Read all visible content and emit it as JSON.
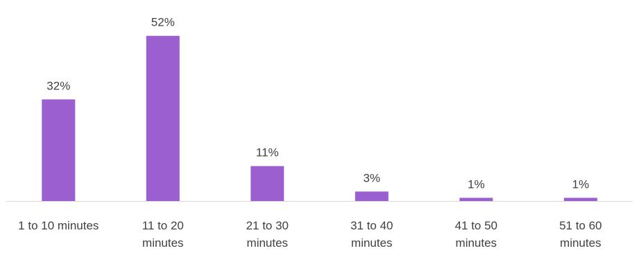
{
  "chart_data": {
    "type": "bar",
    "title": "",
    "xlabel": "",
    "ylabel": "",
    "categories": [
      [
        "1 to 10 minutes"
      ],
      [
        "11 to 20",
        "minutes"
      ],
      [
        "21 to 30",
        "minutes"
      ],
      [
        "31 to 40",
        "minutes"
      ],
      [
        "41 to 50",
        "minutes"
      ],
      [
        "51 to 60",
        "minutes"
      ]
    ],
    "values": [
      32,
      52,
      11,
      3,
      1,
      1
    ],
    "data_labels": [
      "32%",
      "52%",
      "11%",
      "3%",
      "1%",
      "1%"
    ],
    "unit": "%",
    "ylim": [
      0,
      55
    ],
    "grid": false,
    "legend": "none",
    "bar_color": "#9b5fd0",
    "axis_color": "#d9d9d9",
    "text_color": "#404040"
  }
}
